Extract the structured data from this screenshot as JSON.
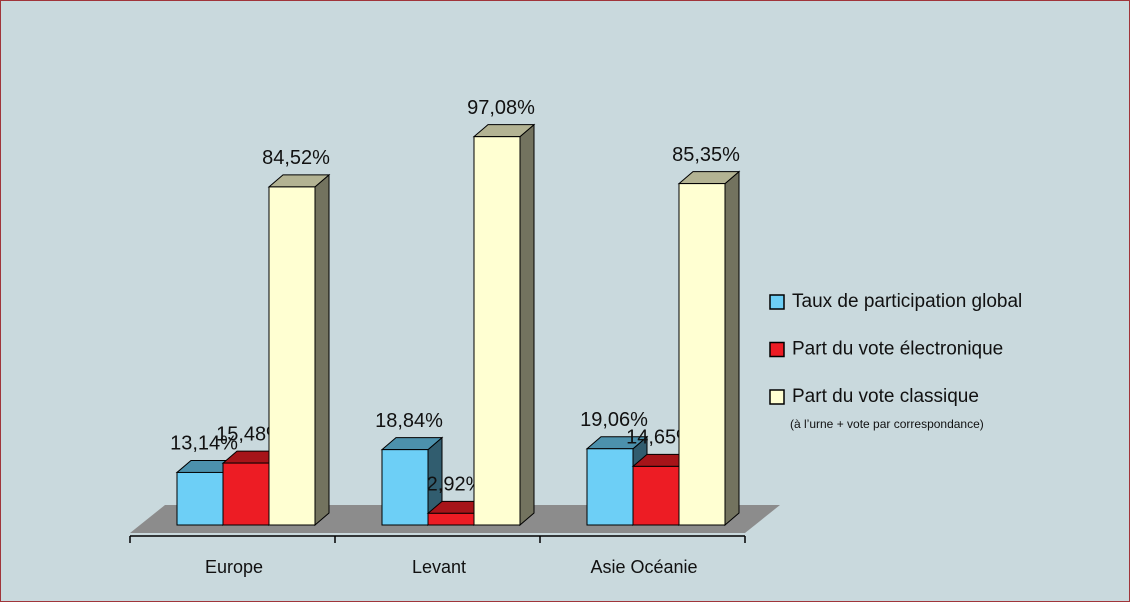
{
  "chart_data": {
    "type": "bar3d",
    "categories": [
      "Europe",
      "Levant",
      "Asie Océanie"
    ],
    "series": [
      {
        "name": "Taux de participation global",
        "color": "#6dcff6",
        "values": [
          13.14,
          18.84,
          19.06
        ],
        "value_labels": [
          "13,14%",
          "18,84%",
          "19,06%"
        ]
      },
      {
        "name": "Part du vote électronique",
        "color": "#ed1c24",
        "values": [
          15.48,
          2.92,
          14.65
        ],
        "value_labels": [
          "15,48%",
          "2,92%",
          "14,65%"
        ]
      },
      {
        "name": "Part du vote classique",
        "color": "#ffffd2",
        "values": [
          84.52,
          97.08,
          85.35
        ],
        "value_labels": [
          "84,52%",
          "97,08%",
          "85,35%"
        ]
      }
    ],
    "legend_note": "(à l’urne + vote par correspondance)",
    "legend": "right"
  }
}
